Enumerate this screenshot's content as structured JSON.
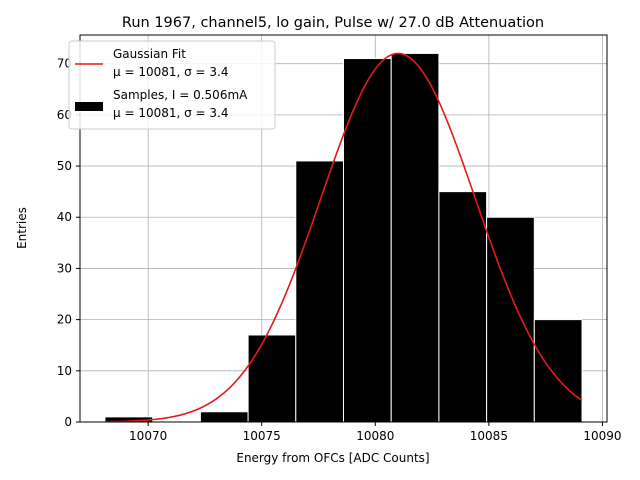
{
  "chart_data": {
    "type": "bar",
    "title": "Run 1967, channel5, lo gain, Pulse w/ 27.0 dB Attenuation",
    "xlabel": "Energy from OFCs [ADC Counts]",
    "ylabel": "Entries",
    "xlim": [
      10067.0,
      10090.2
    ],
    "ylim": [
      0,
      75.6
    ],
    "xticks": [
      10070,
      10075,
      10080,
      10085,
      10090
    ],
    "yticks": [
      0,
      10,
      20,
      30,
      40,
      50,
      60,
      70
    ],
    "grid": true,
    "legend_position": "upper-left",
    "histogram": {
      "name": "Samples, I = 0.506mA",
      "stats": "μ = 10081, σ = 3.4",
      "color": "#000000",
      "edge_color": "#ffffff",
      "bins": [
        {
          "x0": 10068.1,
          "x1": 10070.2,
          "count": 1
        },
        {
          "x0": 10070.2,
          "x1": 10072.3,
          "count": 0
        },
        {
          "x0": 10072.3,
          "x1": 10074.4,
          "count": 2
        },
        {
          "x0": 10074.4,
          "x1": 10076.5,
          "count": 17
        },
        {
          "x0": 10076.5,
          "x1": 10078.6,
          "count": 51
        },
        {
          "x0": 10078.6,
          "x1": 10080.7,
          "count": 71
        },
        {
          "x0": 10080.7,
          "x1": 10082.8,
          "count": 72
        },
        {
          "x0": 10082.8,
          "x1": 10084.9,
          "count": 45
        },
        {
          "x0": 10084.9,
          "x1": 10087.0,
          "count": 40
        },
        {
          "x0": 10087.0,
          "x1": 10089.1,
          "count": 20
        }
      ]
    },
    "fit": {
      "name": "Gaussian Fit",
      "stats": "μ = 10081, σ = 3.4",
      "color": "#e41a1c",
      "amplitude": 72,
      "mu": 10081,
      "sigma": 3.4,
      "x_range": [
        10068.1,
        10089.1
      ]
    }
  }
}
